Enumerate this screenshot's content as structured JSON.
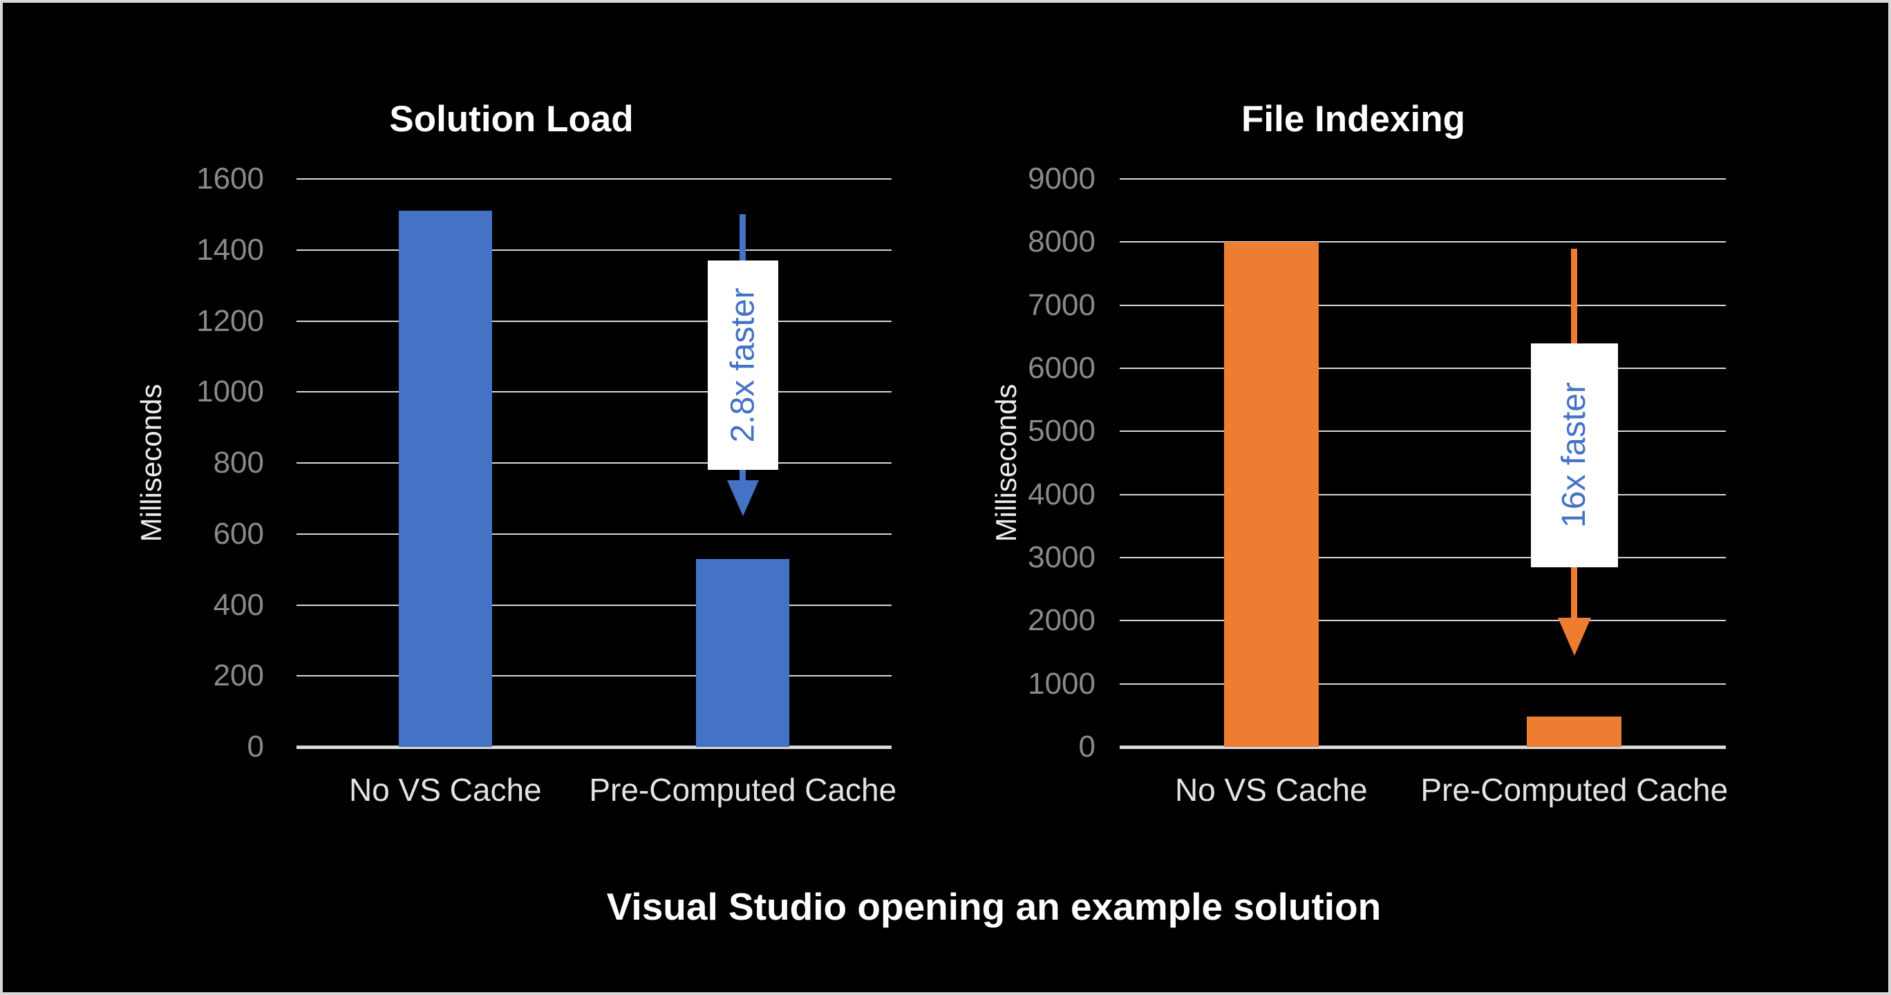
{
  "page": {
    "background": "#000000",
    "border_color": "#d7d7d7"
  },
  "caption": {
    "text": "Visual Studio opening an example solution",
    "color": "#ffffff"
  },
  "axis_style": {
    "tick_label_color": "#8a8a8a",
    "category_label_color": "#e4e4e4",
    "axis_title_color": "#ececec",
    "gridline_color": "#d9d9d9",
    "title_color": "#ffffff"
  },
  "chart_data": [
    {
      "type": "bar",
      "title": "Solution Load",
      "ylabel": "Milliseconds",
      "xlabel": "",
      "categories": [
        "No VS Cache",
        "Pre-Computed Cache"
      ],
      "values": [
        1510,
        530
      ],
      "ylim": [
        0,
        1600
      ],
      "ytick_step": 200,
      "yticks": [
        1600,
        1400,
        1200,
        1000,
        800,
        600,
        400,
        200,
        0
      ],
      "grid": true,
      "legend": false,
      "bar_color": "#4472C4",
      "annotation": {
        "label": "2.8x faster",
        "text_color": "#4472C4",
        "box_color": "#ffffff",
        "arrow_color": "#4472C4",
        "arrow_top_value": 1500,
        "arrow_tip_value": 650,
        "box_top_value": 1370,
        "box_bottom_value": 780
      }
    },
    {
      "type": "bar",
      "title": "File Indexing",
      "ylabel": "Milliseconds",
      "xlabel": "",
      "categories": [
        "No VS Cache",
        "Pre-Computed Cache"
      ],
      "values": [
        8000,
        480
      ],
      "ylim": [
        0,
        9000
      ],
      "ytick_step": 1000,
      "yticks": [
        9000,
        8000,
        7000,
        6000,
        5000,
        4000,
        3000,
        2000,
        1000,
        0
      ],
      "grid": true,
      "legend": false,
      "bar_color": "#ED7D31",
      "annotation": {
        "label": "16x faster",
        "text_color": "#4472C4",
        "box_color": "#ffffff",
        "arrow_color": "#ED7D31",
        "arrow_top_value": 7900,
        "arrow_tip_value": 1450,
        "box_top_value": 6400,
        "box_bottom_value": 2850
      }
    }
  ]
}
